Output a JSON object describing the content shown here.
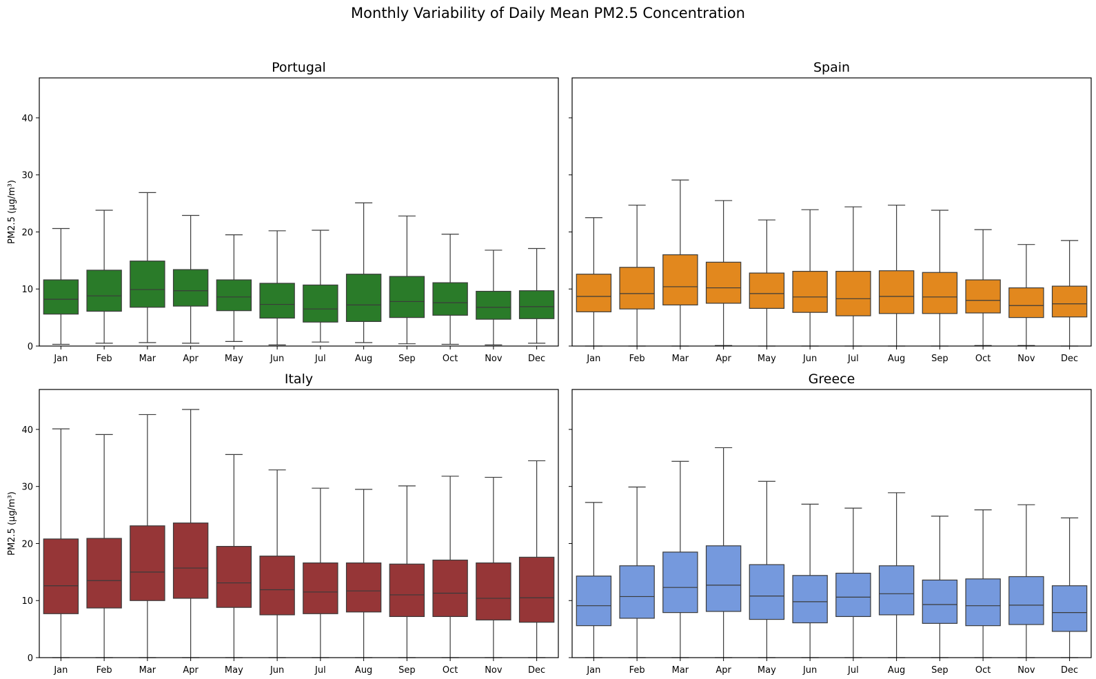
{
  "suptitle": "Monthly Variability of Daily Mean PM2.5 Concentration",
  "chart_data": [
    {
      "type": "box",
      "title": "Portugal",
      "color": "#2a7b29",
      "categories": [
        "Jan",
        "Feb",
        "Mar",
        "Apr",
        "May",
        "Jun",
        "Jul",
        "Aug",
        "Sep",
        "Oct",
        "Nov",
        "Dec"
      ],
      "ylabel": "PM2.5 (µg/m³)",
      "ylim": [
        0,
        47
      ],
      "yticks": [
        0,
        10,
        20,
        30,
        40
      ],
      "boxes": [
        {
          "whislo": 0.3,
          "q1": 5.6,
          "med": 8.2,
          "q3": 11.6,
          "whishi": 20.6
        },
        {
          "whislo": 0.5,
          "q1": 6.1,
          "med": 8.8,
          "q3": 13.3,
          "whishi": 23.8
        },
        {
          "whislo": 0.6,
          "q1": 6.8,
          "med": 9.9,
          "q3": 14.9,
          "whishi": 26.9
        },
        {
          "whislo": 0.5,
          "q1": 7.0,
          "med": 9.7,
          "q3": 13.4,
          "whishi": 22.9
        },
        {
          "whislo": 0.8,
          "q1": 6.2,
          "med": 8.6,
          "q3": 11.6,
          "whishi": 19.5
        },
        {
          "whislo": 0.2,
          "q1": 4.9,
          "med": 7.3,
          "q3": 11.0,
          "whishi": 20.2
        },
        {
          "whislo": 0.7,
          "q1": 4.2,
          "med": 6.5,
          "q3": 10.7,
          "whishi": 20.3
        },
        {
          "whislo": 0.6,
          "q1": 4.3,
          "med": 7.2,
          "q3": 12.6,
          "whishi": 25.1
        },
        {
          "whislo": 0.4,
          "q1": 5.0,
          "med": 7.8,
          "q3": 12.2,
          "whishi": 22.8
        },
        {
          "whislo": 0.3,
          "q1": 5.4,
          "med": 7.6,
          "q3": 11.1,
          "whishi": 19.6
        },
        {
          "whislo": 0.2,
          "q1": 4.7,
          "med": 6.8,
          "q3": 9.6,
          "whishi": 16.8
        },
        {
          "whislo": 0.5,
          "q1": 4.8,
          "med": 6.9,
          "q3": 9.7,
          "whishi": 17.1
        }
      ]
    },
    {
      "type": "box",
      "title": "Spain",
      "color": "#e2881e",
      "categories": [
        "Jan",
        "Feb",
        "Mar",
        "Apr",
        "May",
        "Jun",
        "Jul",
        "Aug",
        "Sep",
        "Oct",
        "Nov",
        "Dec"
      ],
      "ylabel": "",
      "ylim": [
        0,
        47
      ],
      "yticks": [
        0,
        10,
        20,
        30,
        40
      ],
      "boxes": [
        {
          "whislo": 0.0,
          "q1": 6.0,
          "med": 8.7,
          "q3": 12.6,
          "whishi": 22.5
        },
        {
          "whislo": 0.0,
          "q1": 6.5,
          "med": 9.2,
          "q3": 13.8,
          "whishi": 24.7
        },
        {
          "whislo": 0.0,
          "q1": 7.2,
          "med": 10.4,
          "q3": 16.0,
          "whishi": 29.1
        },
        {
          "whislo": 0.1,
          "q1": 7.5,
          "med": 10.2,
          "q3": 14.7,
          "whishi": 25.5
        },
        {
          "whislo": 0.0,
          "q1": 6.6,
          "med": 9.2,
          "q3": 12.8,
          "whishi": 22.1
        },
        {
          "whislo": 0.0,
          "q1": 5.9,
          "med": 8.6,
          "q3": 13.1,
          "whishi": 23.9
        },
        {
          "whislo": 0.0,
          "q1": 5.3,
          "med": 8.3,
          "q3": 13.1,
          "whishi": 24.4
        },
        {
          "whislo": 0.0,
          "q1": 5.7,
          "med": 8.7,
          "q3": 13.2,
          "whishi": 24.7
        },
        {
          "whislo": 0.0,
          "q1": 5.7,
          "med": 8.6,
          "q3": 12.9,
          "whishi": 23.8
        },
        {
          "whislo": 0.1,
          "q1": 5.8,
          "med": 8.0,
          "q3": 11.6,
          "whishi": 20.4
        },
        {
          "whislo": 0.1,
          "q1": 5.0,
          "med": 7.1,
          "q3": 10.2,
          "whishi": 17.8
        },
        {
          "whislo": 0.0,
          "q1": 5.1,
          "med": 7.4,
          "q3": 10.5,
          "whishi": 18.5
        }
      ]
    },
    {
      "type": "box",
      "title": "Italy",
      "color": "#963637",
      "categories": [
        "Jan",
        "Feb",
        "Mar",
        "Apr",
        "May",
        "Jun",
        "Jul",
        "Aug",
        "Sep",
        "Oct",
        "Nov",
        "Dec"
      ],
      "ylabel": "PM2.5 (µg/m³)",
      "ylim": [
        0,
        47
      ],
      "yticks": [
        0,
        10,
        20,
        30,
        40
      ],
      "boxes": [
        {
          "whislo": 0.0,
          "q1": 7.7,
          "med": 12.6,
          "q3": 20.8,
          "whishi": 40.1
        },
        {
          "whislo": 0.0,
          "q1": 8.7,
          "med": 13.5,
          "q3": 20.9,
          "whishi": 39.1
        },
        {
          "whislo": 0.0,
          "q1": 10.0,
          "med": 15.0,
          "q3": 23.1,
          "whishi": 42.6
        },
        {
          "whislo": 0.0,
          "q1": 10.4,
          "med": 15.7,
          "q3": 23.6,
          "whishi": 43.5
        },
        {
          "whislo": 0.0,
          "q1": 8.8,
          "med": 13.1,
          "q3": 19.5,
          "whishi": 35.6
        },
        {
          "whislo": 0.0,
          "q1": 7.5,
          "med": 11.9,
          "q3": 17.8,
          "whishi": 32.9
        },
        {
          "whislo": 0.0,
          "q1": 7.7,
          "med": 11.5,
          "q3": 16.6,
          "whishi": 29.7
        },
        {
          "whislo": 0.0,
          "q1": 8.0,
          "med": 11.7,
          "q3": 16.6,
          "whishi": 29.5
        },
        {
          "whislo": 0.0,
          "q1": 7.2,
          "med": 11.0,
          "q3": 16.4,
          "whishi": 30.1
        },
        {
          "whislo": 0.0,
          "q1": 7.2,
          "med": 11.3,
          "q3": 17.1,
          "whishi": 31.8
        },
        {
          "whislo": 0.0,
          "q1": 6.6,
          "med": 10.4,
          "q3": 16.6,
          "whishi": 31.6
        },
        {
          "whislo": 0.0,
          "q1": 6.2,
          "med": 10.5,
          "q3": 17.6,
          "whishi": 34.5
        }
      ]
    },
    {
      "type": "box",
      "title": "Greece",
      "color": "#7599dd",
      "categories": [
        "Jan",
        "Feb",
        "Mar",
        "Apr",
        "May",
        "Jun",
        "Jul",
        "Aug",
        "Sep",
        "Oct",
        "Nov",
        "Dec"
      ],
      "ylabel": "",
      "ylim": [
        0,
        47
      ],
      "yticks": [
        0,
        10,
        20,
        30,
        40
      ],
      "boxes": [
        {
          "whislo": 0.0,
          "q1": 5.6,
          "med": 9.1,
          "q3": 14.3,
          "whishi": 27.2
        },
        {
          "whislo": 0.0,
          "q1": 6.9,
          "med": 10.7,
          "q3": 16.1,
          "whishi": 29.9
        },
        {
          "whislo": 0.0,
          "q1": 7.9,
          "med": 12.3,
          "q3": 18.5,
          "whishi": 34.4
        },
        {
          "whislo": 0.0,
          "q1": 8.1,
          "med": 12.7,
          "q3": 19.6,
          "whishi": 36.8
        },
        {
          "whislo": 0.0,
          "q1": 6.7,
          "med": 10.8,
          "q3": 16.3,
          "whishi": 30.9
        },
        {
          "whislo": 0.0,
          "q1": 6.1,
          "med": 9.8,
          "q3": 14.4,
          "whishi": 26.9
        },
        {
          "whislo": 0.0,
          "q1": 7.2,
          "med": 10.6,
          "q3": 14.8,
          "whishi": 26.2
        },
        {
          "whislo": 0.0,
          "q1": 7.5,
          "med": 11.2,
          "q3": 16.1,
          "whishi": 28.9
        },
        {
          "whislo": 0.0,
          "q1": 6.0,
          "med": 9.3,
          "q3": 13.6,
          "whishi": 24.8
        },
        {
          "whislo": 0.0,
          "q1": 5.6,
          "med": 9.1,
          "q3": 13.8,
          "whishi": 25.9
        },
        {
          "whislo": 0.0,
          "q1": 5.8,
          "med": 9.2,
          "q3": 14.2,
          "whishi": 26.8
        },
        {
          "whislo": 0.0,
          "q1": 4.6,
          "med": 7.9,
          "q3": 12.6,
          "whishi": 24.5
        }
      ]
    }
  ]
}
